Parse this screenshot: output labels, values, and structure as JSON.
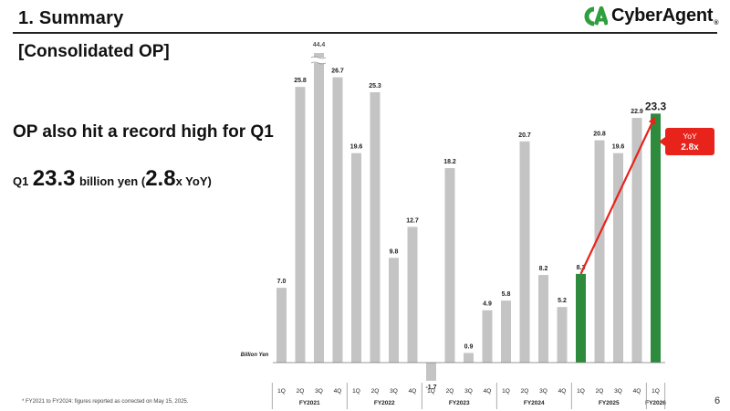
{
  "header": {
    "title": "1.  Summary",
    "logo_text": "CyberAgent",
    "logo_reg": "®",
    "logo_color": "#2e9e3f"
  },
  "section_title": "[Consolidated OP]",
  "headline": "OP also hit a record high for Q1",
  "q1_summary": {
    "prefix": "Q1",
    "value": "23.3",
    "unit": "billion yen (",
    "multiple": "2.8",
    "suffix": "x YoY)"
  },
  "yoy_badge": {
    "label": "YoY",
    "value": "2.8x",
    "color": "#e8231c"
  },
  "chart_data": {
    "type": "bar",
    "ylabel": "Billion Yen",
    "categories": [
      "1Q",
      "2Q",
      "3Q",
      "4Q",
      "1Q",
      "2Q",
      "3Q",
      "4Q",
      "1Q",
      "2Q",
      "3Q",
      "4Q",
      "1Q",
      "2Q",
      "3Q",
      "4Q",
      "1Q",
      "2Q",
      "3Q",
      "4Q",
      "1Q"
    ],
    "values": [
      7.0,
      25.8,
      44.4,
      26.7,
      19.6,
      25.3,
      9.8,
      12.7,
      -1.7,
      18.2,
      0.9,
      4.9,
      5.8,
      20.7,
      8.2,
      5.2,
      8.3,
      20.8,
      19.6,
      22.9,
      23.3
    ],
    "value_labels": [
      "7.0",
      "25.8",
      "44.4",
      "26.7",
      "19.6",
      "25.3",
      "9.8",
      "12.7",
      "-1.7",
      "18.2",
      "0.9",
      "4.9",
      "5.8",
      "20.7",
      "8.2",
      "5.2",
      "8.3",
      "20.8",
      "19.6",
      "22.9",
      "23.3"
    ],
    "highlight_indices": [
      16,
      20
    ],
    "colors": {
      "default": "#c4c4c4",
      "highlight": "#2e8b3e",
      "arrow": "#e8231c"
    },
    "broken_axis_index": 2,
    "groups": [
      {
        "label": "FY2021",
        "count": 4
      },
      {
        "label": "FY2022",
        "count": 4
      },
      {
        "label": "FY2023",
        "count": 4
      },
      {
        "label": "FY2024",
        "count": 4
      },
      {
        "label": "FY2025",
        "count": 4
      },
      {
        "label": "FY2026",
        "count": 1
      }
    ],
    "arrow": {
      "from_index": 16,
      "to_index": 20
    }
  },
  "footnote": "* FY2021 to FY2024: figures reported as corrected on May 15, 2025.",
  "page_number": "6"
}
